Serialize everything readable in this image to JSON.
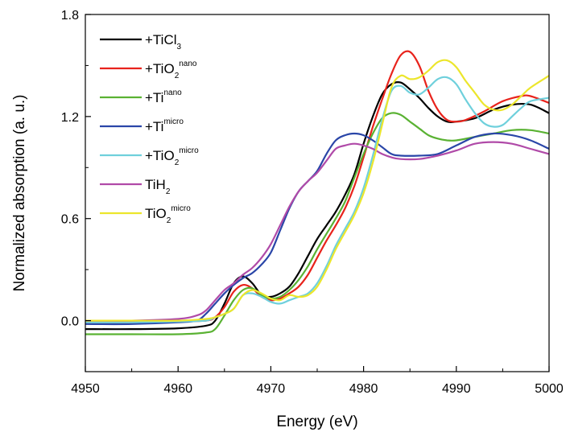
{
  "chart_data": {
    "type": "line",
    "xlabel": "Energy (eV)",
    "ylabel": "Normalized absorption (a. u.)",
    "xlim": [
      4950,
      5000
    ],
    "ylim": [
      -0.3,
      1.8
    ],
    "xticks": [
      4950,
      4960,
      4970,
      4980,
      4990,
      5000
    ],
    "yticks": [
      0.0,
      0.6,
      1.2,
      1.8
    ],
    "ytick_labels": [
      "0.0",
      "0.6",
      "1.2",
      "1.8"
    ],
    "legend_position": "top-left",
    "series": [
      {
        "name": "+TiCl3",
        "legend": {
          "base": "+TiCl",
          "sub": "3",
          "sup": ""
        },
        "color": "#000000",
        "points": [
          [
            4950,
            -0.05
          ],
          [
            4955,
            -0.05
          ],
          [
            4960,
            -0.045
          ],
          [
            4963,
            -0.03
          ],
          [
            4964,
            0.0
          ],
          [
            4965,
            0.1
          ],
          [
            4966,
            0.22
          ],
          [
            4967,
            0.26
          ],
          [
            4968,
            0.22
          ],
          [
            4969,
            0.15
          ],
          [
            4970,
            0.14
          ],
          [
            4971,
            0.16
          ],
          [
            4972,
            0.2
          ],
          [
            4973,
            0.28
          ],
          [
            4974,
            0.38
          ],
          [
            4975,
            0.48
          ],
          [
            4976,
            0.56
          ],
          [
            4977,
            0.64
          ],
          [
            4978,
            0.74
          ],
          [
            4979,
            0.86
          ],
          [
            4980,
            1.04
          ],
          [
            4981,
            1.2
          ],
          [
            4982,
            1.33
          ],
          [
            4983,
            1.39
          ],
          [
            4984,
            1.4
          ],
          [
            4985,
            1.36
          ],
          [
            4986,
            1.31
          ],
          [
            4987,
            1.25
          ],
          [
            4988,
            1.2
          ],
          [
            4989,
            1.17
          ],
          [
            4990,
            1.17
          ],
          [
            4992,
            1.19
          ],
          [
            4994,
            1.24
          ],
          [
            4996,
            1.27
          ],
          [
            4998,
            1.27
          ],
          [
            5000,
            1.22
          ]
        ]
      },
      {
        "name": "+TiO2 nano",
        "legend": {
          "base": "+TiO",
          "sub": "2",
          "sup": "nano"
        },
        "color": "#e8231c",
        "points": [
          [
            4950,
            -0.01
          ],
          [
            4955,
            -0.01
          ],
          [
            4960,
            -0.005
          ],
          [
            4963,
            0.0
          ],
          [
            4964,
            0.02
          ],
          [
            4965,
            0.08
          ],
          [
            4966,
            0.17
          ],
          [
            4967,
            0.21
          ],
          [
            4968,
            0.19
          ],
          [
            4969,
            0.14
          ],
          [
            4970,
            0.12
          ],
          [
            4971,
            0.13
          ],
          [
            4972,
            0.16
          ],
          [
            4973,
            0.2
          ],
          [
            4974,
            0.27
          ],
          [
            4975,
            0.37
          ],
          [
            4976,
            0.47
          ],
          [
            4977,
            0.56
          ],
          [
            4978,
            0.66
          ],
          [
            4979,
            0.79
          ],
          [
            4980,
            0.96
          ],
          [
            4981,
            1.14
          ],
          [
            4982,
            1.3
          ],
          [
            4983,
            1.45
          ],
          [
            4984,
            1.56
          ],
          [
            4985,
            1.58
          ],
          [
            4986,
            1.5
          ],
          [
            4987,
            1.35
          ],
          [
            4988,
            1.24
          ],
          [
            4989,
            1.18
          ],
          [
            4990,
            1.17
          ],
          [
            4991,
            1.18
          ],
          [
            4993,
            1.23
          ],
          [
            4995,
            1.29
          ],
          [
            4997,
            1.32
          ],
          [
            4998,
            1.32
          ],
          [
            5000,
            1.28
          ]
        ]
      },
      {
        "name": "+Ti nano",
        "legend": {
          "base": "+Ti",
          "sub": "",
          "sup": "nano"
        },
        "color": "#5ab233",
        "points": [
          [
            4950,
            -0.08
          ],
          [
            4955,
            -0.08
          ],
          [
            4960,
            -0.08
          ],
          [
            4963,
            -0.07
          ],
          [
            4964,
            -0.05
          ],
          [
            4965,
            0.03
          ],
          [
            4966,
            0.12
          ],
          [
            4967,
            0.18
          ],
          [
            4968,
            0.19
          ],
          [
            4969,
            0.15
          ],
          [
            4970,
            0.13
          ],
          [
            4971,
            0.14
          ],
          [
            4972,
            0.18
          ],
          [
            4973,
            0.24
          ],
          [
            4974,
            0.32
          ],
          [
            4975,
            0.42
          ],
          [
            4976,
            0.51
          ],
          [
            4977,
            0.6
          ],
          [
            4978,
            0.7
          ],
          [
            4979,
            0.84
          ],
          [
            4980,
            0.98
          ],
          [
            4981,
            1.1
          ],
          [
            4982,
            1.19
          ],
          [
            4983,
            1.22
          ],
          [
            4984,
            1.21
          ],
          [
            4985,
            1.17
          ],
          [
            4986,
            1.13
          ],
          [
            4987,
            1.09
          ],
          [
            4988,
            1.07
          ],
          [
            4989,
            1.06
          ],
          [
            4990,
            1.06
          ],
          [
            4992,
            1.08
          ],
          [
            4994,
            1.1
          ],
          [
            4996,
            1.12
          ],
          [
            4998,
            1.12
          ],
          [
            5000,
            1.1
          ]
        ]
      },
      {
        "name": "+Ti micro",
        "legend": {
          "base": "+Ti",
          "sub": "",
          "sup": "micro"
        },
        "color": "#2a46a8",
        "points": [
          [
            4950,
            -0.02
          ],
          [
            4955,
            -0.02
          ],
          [
            4960,
            -0.01
          ],
          [
            4962,
            0.0
          ],
          [
            4963,
            0.04
          ],
          [
            4964,
            0.1
          ],
          [
            4965,
            0.16
          ],
          [
            4966,
            0.21
          ],
          [
            4967,
            0.25
          ],
          [
            4968,
            0.28
          ],
          [
            4969,
            0.33
          ],
          [
            4970,
            0.4
          ],
          [
            4971,
            0.53
          ],
          [
            4972,
            0.66
          ],
          [
            4973,
            0.76
          ],
          [
            4974,
            0.82
          ],
          [
            4975,
            0.88
          ],
          [
            4976,
            0.98
          ],
          [
            4977,
            1.06
          ],
          [
            4978,
            1.09
          ],
          [
            4979,
            1.1
          ],
          [
            4980,
            1.09
          ],
          [
            4981,
            1.06
          ],
          [
            4982,
            1.02
          ],
          [
            4983,
            0.98
          ],
          [
            4984,
            0.97
          ],
          [
            4986,
            0.97
          ],
          [
            4988,
            0.98
          ],
          [
            4990,
            1.03
          ],
          [
            4992,
            1.08
          ],
          [
            4994,
            1.1
          ],
          [
            4996,
            1.09
          ],
          [
            4998,
            1.06
          ],
          [
            5000,
            1.01
          ]
        ]
      },
      {
        "name": "+TiO2 micro",
        "legend": {
          "base": "+TiO",
          "sub": "2",
          "sup": "micro"
        },
        "color": "#6fd0dc",
        "points": [
          [
            4950,
            -0.01
          ],
          [
            4955,
            -0.01
          ],
          [
            4960,
            -0.005
          ],
          [
            4963,
            0.0
          ],
          [
            4964,
            0.02
          ],
          [
            4965,
            0.04
          ],
          [
            4966,
            0.07
          ],
          [
            4967,
            0.15
          ],
          [
            4968,
            0.16
          ],
          [
            4969,
            0.14
          ],
          [
            4970,
            0.11
          ],
          [
            4971,
            0.1
          ],
          [
            4972,
            0.12
          ],
          [
            4973,
            0.14
          ],
          [
            4974,
            0.16
          ],
          [
            4975,
            0.22
          ],
          [
            4976,
            0.32
          ],
          [
            4977,
            0.44
          ],
          [
            4978,
            0.54
          ],
          [
            4979,
            0.64
          ],
          [
            4980,
            0.78
          ],
          [
            4981,
            0.97
          ],
          [
            4982,
            1.18
          ],
          [
            4983,
            1.35
          ],
          [
            4984,
            1.38
          ],
          [
            4985,
            1.34
          ],
          [
            4986,
            1.33
          ],
          [
            4987,
            1.37
          ],
          [
            4988,
            1.42
          ],
          [
            4989,
            1.43
          ],
          [
            4990,
            1.39
          ],
          [
            4991,
            1.3
          ],
          [
            4992,
            1.22
          ],
          [
            4993,
            1.16
          ],
          [
            4994,
            1.14
          ],
          [
            4995,
            1.15
          ],
          [
            4996,
            1.2
          ],
          [
            4997,
            1.25
          ],
          [
            4998,
            1.29
          ],
          [
            5000,
            1.31
          ]
        ]
      },
      {
        "name": "TiH2",
        "legend": {
          "base": "TiH",
          "sub": "2",
          "sup": ""
        },
        "color": "#b04aa8",
        "points": [
          [
            4950,
            0.0
          ],
          [
            4955,
            0.0
          ],
          [
            4960,
            0.01
          ],
          [
            4962,
            0.03
          ],
          [
            4963,
            0.06
          ],
          [
            4964,
            0.12
          ],
          [
            4965,
            0.18
          ],
          [
            4966,
            0.22
          ],
          [
            4967,
            0.27
          ],
          [
            4968,
            0.31
          ],
          [
            4969,
            0.37
          ],
          [
            4970,
            0.45
          ],
          [
            4971,
            0.56
          ],
          [
            4972,
            0.67
          ],
          [
            4973,
            0.76
          ],
          [
            4974,
            0.82
          ],
          [
            4975,
            0.87
          ],
          [
            4976,
            0.94
          ],
          [
            4977,
            1.01
          ],
          [
            4978,
            1.03
          ],
          [
            4979,
            1.04
          ],
          [
            4980,
            1.03
          ],
          [
            4981,
            1.01
          ],
          [
            4982,
            0.98
          ],
          [
            4983,
            0.96
          ],
          [
            4984,
            0.95
          ],
          [
            4986,
            0.95
          ],
          [
            4988,
            0.97
          ],
          [
            4990,
            1.0
          ],
          [
            4992,
            1.04
          ],
          [
            4994,
            1.05
          ],
          [
            4996,
            1.04
          ],
          [
            4998,
            1.01
          ],
          [
            5000,
            0.98
          ]
        ]
      },
      {
        "name": "TiO2 micro",
        "legend": {
          "base": "TiO",
          "sub": "2",
          "sup": "micro"
        },
        "color": "#ece62c",
        "points": [
          [
            4950,
            0.0
          ],
          [
            4955,
            0.0
          ],
          [
            4960,
            0.0
          ],
          [
            4963,
            0.01
          ],
          [
            4964,
            0.02
          ],
          [
            4965,
            0.04
          ],
          [
            4966,
            0.07
          ],
          [
            4967,
            0.15
          ],
          [
            4968,
            0.18
          ],
          [
            4969,
            0.16
          ],
          [
            4970,
            0.13
          ],
          [
            4971,
            0.12
          ],
          [
            4972,
            0.15
          ],
          [
            4973,
            0.14
          ],
          [
            4974,
            0.15
          ],
          [
            4975,
            0.2
          ],
          [
            4976,
            0.3
          ],
          [
            4977,
            0.42
          ],
          [
            4978,
            0.52
          ],
          [
            4979,
            0.62
          ],
          [
            4980,
            0.75
          ],
          [
            4981,
            0.93
          ],
          [
            4982,
            1.15
          ],
          [
            4983,
            1.37
          ],
          [
            4984,
            1.44
          ],
          [
            4985,
            1.42
          ],
          [
            4986,
            1.43
          ],
          [
            4987,
            1.47
          ],
          [
            4988,
            1.52
          ],
          [
            4989,
            1.53
          ],
          [
            4990,
            1.49
          ],
          [
            4991,
            1.41
          ],
          [
            4992,
            1.34
          ],
          [
            4993,
            1.27
          ],
          [
            4994,
            1.24
          ],
          [
            4995,
            1.24
          ],
          [
            4996,
            1.27
          ],
          [
            4997,
            1.32
          ],
          [
            4998,
            1.37
          ],
          [
            5000,
            1.44
          ]
        ]
      }
    ]
  }
}
